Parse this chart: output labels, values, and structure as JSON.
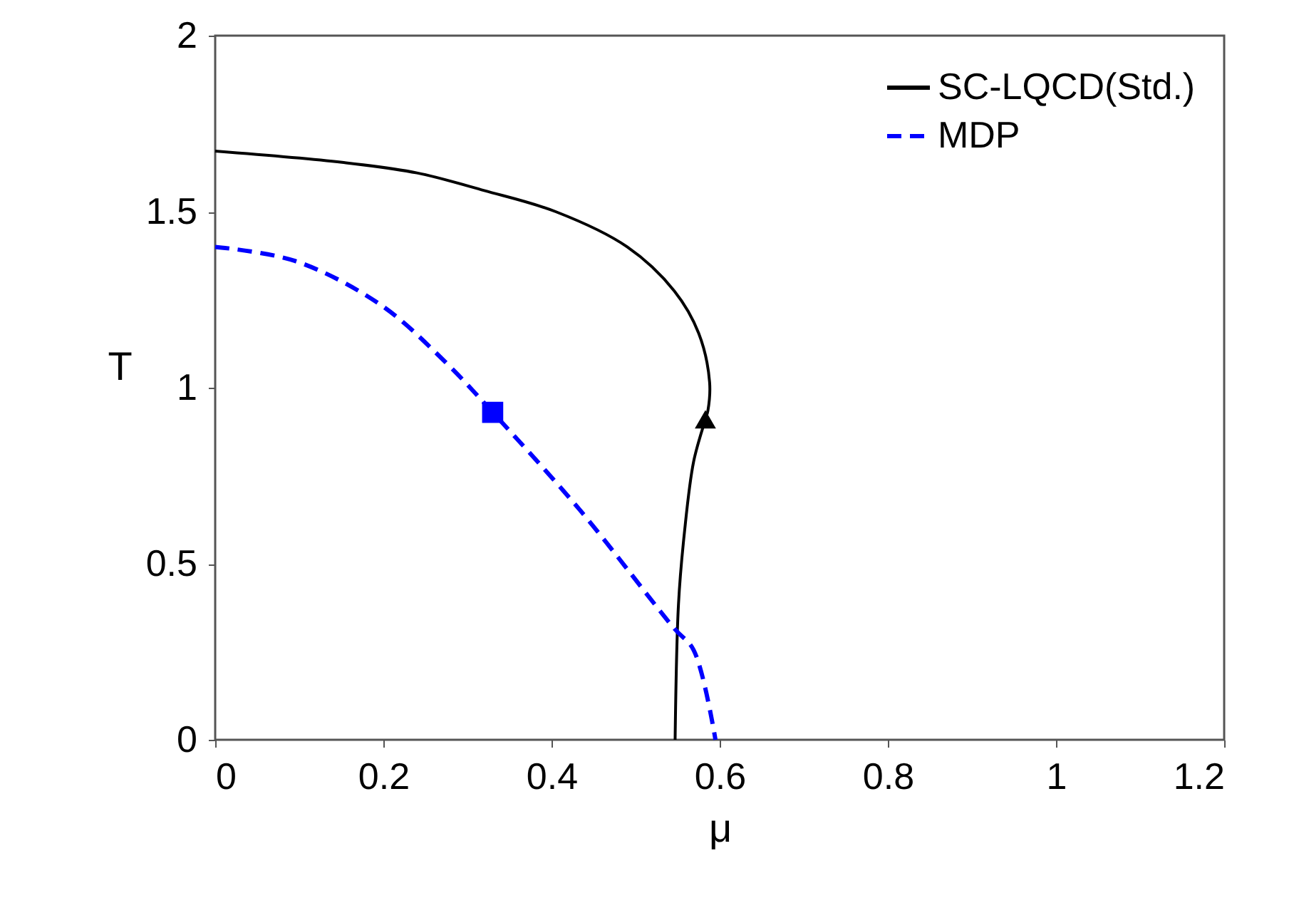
{
  "chart_data": {
    "type": "line",
    "xlabel": "μ",
    "ylabel": "T",
    "xlim": [
      0,
      1.2
    ],
    "ylim": [
      0,
      2
    ],
    "xticks": [
      0,
      0.2,
      0.4,
      0.6,
      0.8,
      1,
      1.2
    ],
    "yticks": [
      0,
      0.5,
      1,
      1.5,
      2
    ],
    "grid": false,
    "legend": "top right",
    "series": [
      {
        "name": "SC-LQCD(Std.)",
        "type": "line",
        "color": "#000000",
        "line_style": "solid",
        "x": [
          0,
          0.151,
          0.24,
          0.32,
          0.405,
          0.49,
          0.546,
          0.575,
          0.588,
          0.586,
          0.583,
          0.569,
          0.558,
          0.551,
          0.547
        ],
        "values": [
          1.672,
          1.64,
          1.61,
          1.56,
          1.5,
          1.4,
          1.275,
          1.155,
          1.016,
          0.935,
          0.91,
          0.79,
          0.587,
          0.385,
          0
        ]
      },
      {
        "name": "MDP",
        "type": "line",
        "color": "#0000ff",
        "line_style": "dashed",
        "x": [
          0,
          0.095,
          0.197,
          0.275,
          0.33,
          0.434,
          0.546,
          0.569,
          0.595
        ],
        "values": [
          1.4,
          1.36,
          1.235,
          1.07,
          0.93,
          0.652,
          0.316,
          0.255,
          0
        ]
      },
      {
        "type": "scatter",
        "color": "#000000",
        "marker": "triangle",
        "x": [
          0.583
        ],
        "values": [
          0.91
        ]
      },
      {
        "type": "scatter",
        "color": "#0000ff",
        "marker": "square",
        "x": [
          0.33
        ],
        "values": [
          0.93
        ]
      }
    ]
  }
}
